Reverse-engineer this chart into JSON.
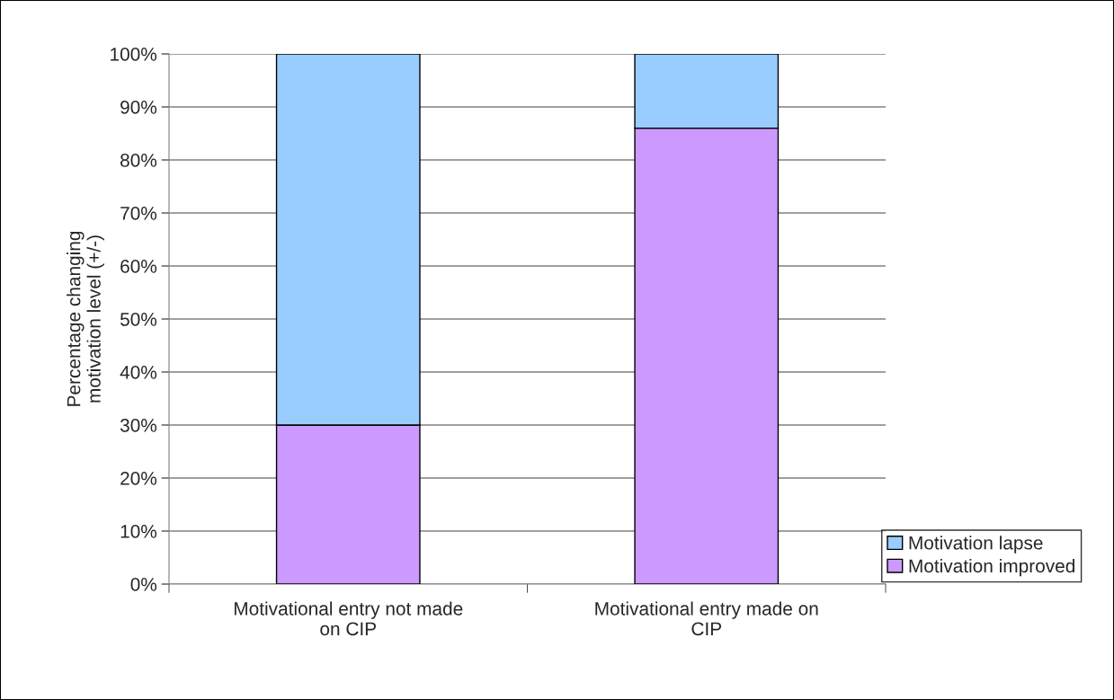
{
  "chart_data": {
    "type": "bar",
    "stacked": true,
    "ylabel": "Percentage changing\nmotivation level (+/-)",
    "categories": [
      "Motivational entry not made\non CIP",
      "Motivational entry made on\nCIP"
    ],
    "series": [
      {
        "name": "Motivation improved",
        "color": "#cc99ff",
        "values": [
          30,
          86
        ]
      },
      {
        "name": "Motivation lapse",
        "color": "#99ccff",
        "values": [
          70,
          14
        ]
      }
    ],
    "ylim": [
      0,
      100
    ],
    "yticks": [
      {
        "value": 0,
        "label": "0%"
      },
      {
        "value": 10,
        "label": "10%"
      },
      {
        "value": 20,
        "label": "20%"
      },
      {
        "value": 30,
        "label": "30%"
      },
      {
        "value": 40,
        "label": "40%"
      },
      {
        "value": 50,
        "label": "50%"
      },
      {
        "value": 60,
        "label": "60%"
      },
      {
        "value": 70,
        "label": "70%"
      },
      {
        "value": 80,
        "label": "80%"
      },
      {
        "value": 90,
        "label": "90%"
      },
      {
        "value": 100,
        "label": "100%"
      }
    ],
    "grid": "y",
    "legend": "bottom right"
  }
}
